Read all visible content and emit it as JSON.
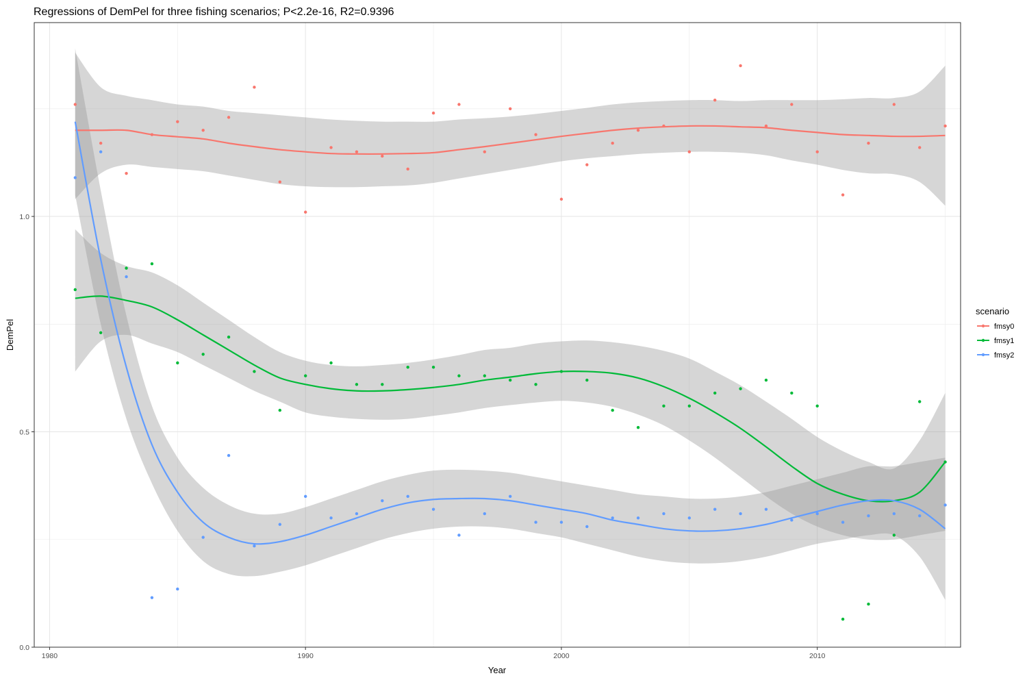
{
  "chart_data": {
    "type": "scatter",
    "title": "Regressions of DemPel for three fishing scenarios; P<2.2e-16, R2=0.9396",
    "xlabel": "Year",
    "ylabel": "DemPel",
    "xlim": [
      1979.4,
      2015.6
    ],
    "ylim": [
      0.0,
      1.45
    ],
    "x_ticks": [
      1980,
      1990,
      2000,
      2010
    ],
    "x_tick_labels": [
      "1980",
      "1990",
      "2000",
      "2010"
    ],
    "y_ticks": [
      0.0,
      0.5,
      1.0
    ],
    "y_tick_labels": [
      "0.0",
      "0.5",
      "1.0"
    ],
    "grid": true,
    "legend": {
      "title": "scenario",
      "position": "right"
    },
    "series": [
      {
        "name": "fmsy0",
        "color": "#F8766D",
        "points": {
          "x": [
            1981,
            1982,
            1983,
            1984,
            1985,
            1986,
            1987,
            1988,
            1989,
            1990,
            1991,
            1992,
            1993,
            1994,
            1995,
            1996,
            1997,
            1998,
            1999,
            2000,
            2001,
            2002,
            2003,
            2004,
            2005,
            2006,
            2007,
            2008,
            2009,
            2010,
            2011,
            2012,
            2013,
            2014,
            2015
          ],
          "y": [
            1.26,
            1.17,
            1.1,
            1.19,
            1.22,
            1.2,
            1.23,
            1.3,
            1.08,
            1.01,
            1.16,
            1.15,
            1.14,
            1.11,
            1.24,
            1.26,
            1.15,
            1.25,
            1.19,
            1.04,
            1.12,
            1.17,
            1.2,
            1.21,
            1.15,
            1.27,
            1.35,
            1.21,
            1.26,
            1.15,
            1.05,
            1.17,
            1.26,
            1.16,
            1.21
          ]
        },
        "smooth": {
          "x": [
            1981,
            1982,
            1983,
            1984,
            1985,
            1986,
            1987,
            1988,
            1989,
            1990,
            1991,
            1992,
            1993,
            1994,
            1995,
            1996,
            1997,
            1998,
            1999,
            2000,
            2001,
            2002,
            2003,
            2004,
            2005,
            2006,
            2007,
            2008,
            2009,
            2010,
            2011,
            2012,
            2013,
            2014,
            2015
          ],
          "y": [
            1.2,
            1.2,
            1.2,
            1.19,
            1.185,
            1.18,
            1.17,
            1.162,
            1.155,
            1.15,
            1.146,
            1.145,
            1.145,
            1.146,
            1.148,
            1.155,
            1.162,
            1.17,
            1.178,
            1.186,
            1.193,
            1.2,
            1.205,
            1.208,
            1.21,
            1.21,
            1.208,
            1.206,
            1.2,
            1.195,
            1.19,
            1.188,
            1.186,
            1.186,
            1.188
          ],
          "ci_lower": [
            1.04,
            1.1,
            1.12,
            1.115,
            1.11,
            1.105,
            1.095,
            1.085,
            1.075,
            1.07,
            1.068,
            1.068,
            1.07,
            1.072,
            1.078,
            1.088,
            1.098,
            1.108,
            1.118,
            1.128,
            1.135,
            1.14,
            1.145,
            1.148,
            1.15,
            1.15,
            1.148,
            1.142,
            1.13,
            1.12,
            1.108,
            1.1,
            1.098,
            1.08,
            1.025
          ],
          "ci_upper": [
            1.38,
            1.3,
            1.28,
            1.27,
            1.26,
            1.255,
            1.245,
            1.24,
            1.235,
            1.23,
            1.225,
            1.222,
            1.22,
            1.22,
            1.22,
            1.225,
            1.228,
            1.232,
            1.238,
            1.245,
            1.252,
            1.26,
            1.265,
            1.268,
            1.27,
            1.27,
            1.268,
            1.27,
            1.27,
            1.27,
            1.272,
            1.275,
            1.275,
            1.29,
            1.35
          ]
        }
      },
      {
        "name": "fmsy1",
        "color": "#00BA38",
        "points": {
          "x": [
            1981,
            1982,
            1983,
            1984,
            1985,
            1986,
            1987,
            1988,
            1989,
            1990,
            1991,
            1992,
            1993,
            1994,
            1995,
            1996,
            1997,
            1998,
            1999,
            2000,
            2001,
            2002,
            2003,
            2004,
            2005,
            2006,
            2007,
            2008,
            2009,
            2010,
            2011,
            2012,
            2013,
            2014,
            2015
          ],
          "y": [
            0.83,
            0.73,
            0.88,
            0.89,
            0.66,
            0.68,
            0.72,
            0.64,
            0.55,
            0.63,
            0.66,
            0.61,
            0.61,
            0.65,
            0.65,
            0.63,
            0.63,
            0.62,
            0.61,
            0.64,
            0.62,
            0.55,
            0.51,
            0.56,
            0.56,
            0.59,
            0.6,
            0.62,
            0.59,
            0.56,
            0.065,
            0.1,
            0.26,
            0.57,
            0.43
          ]
        },
        "smooth": {
          "x": [
            1981,
            1982,
            1983,
            1984,
            1985,
            1986,
            1987,
            1988,
            1989,
            1990,
            1991,
            1992,
            1993,
            1994,
            1995,
            1996,
            1997,
            1998,
            1999,
            2000,
            2001,
            2002,
            2003,
            2004,
            2005,
            2006,
            2007,
            2008,
            2009,
            2010,
            2011,
            2012,
            2013,
            2014,
            2015
          ],
          "y": [
            0.81,
            0.815,
            0.805,
            0.79,
            0.76,
            0.725,
            0.69,
            0.655,
            0.625,
            0.61,
            0.6,
            0.595,
            0.595,
            0.598,
            0.603,
            0.61,
            0.62,
            0.627,
            0.635,
            0.64,
            0.64,
            0.636,
            0.625,
            0.605,
            0.578,
            0.545,
            0.508,
            0.465,
            0.42,
            0.38,
            0.355,
            0.34,
            0.34,
            0.36,
            0.43
          ],
          "ci_lower": [
            0.64,
            0.71,
            0.725,
            0.705,
            0.685,
            0.655,
            0.625,
            0.595,
            0.57,
            0.545,
            0.535,
            0.53,
            0.528,
            0.53,
            0.537,
            0.545,
            0.555,
            0.562,
            0.568,
            0.572,
            0.568,
            0.558,
            0.54,
            0.515,
            0.48,
            0.44,
            0.395,
            0.35,
            0.31,
            0.28,
            0.26,
            0.25,
            0.25,
            0.26,
            0.27
          ],
          "ci_upper": [
            0.97,
            0.915,
            0.885,
            0.87,
            0.84,
            0.8,
            0.76,
            0.72,
            0.685,
            0.665,
            0.655,
            0.652,
            0.655,
            0.66,
            0.668,
            0.678,
            0.69,
            0.695,
            0.705,
            0.71,
            0.712,
            0.708,
            0.7,
            0.688,
            0.67,
            0.64,
            0.608,
            0.57,
            0.53,
            0.488,
            0.455,
            0.43,
            0.415,
            0.48,
            0.59
          ]
        }
      },
      {
        "name": "fmsy2",
        "color": "#619CFF",
        "points": {
          "x": [
            1981,
            1982,
            1983,
            1984,
            1985,
            1986,
            1987,
            1988,
            1989,
            1990,
            1991,
            1992,
            1993,
            1994,
            1995,
            1996,
            1997,
            1998,
            1999,
            2000,
            2001,
            2002,
            2003,
            2004,
            2005,
            2006,
            2007,
            2008,
            2009,
            2010,
            2011,
            2012,
            2013,
            2014,
            2015
          ],
          "y": [
            1.09,
            1.15,
            0.86,
            0.115,
            0.135,
            0.255,
            0.445,
            0.235,
            0.285,
            0.35,
            0.3,
            0.31,
            0.34,
            0.35,
            0.32,
            0.26,
            0.31,
            0.35,
            0.29,
            0.29,
            0.28,
            0.3,
            0.3,
            0.31,
            0.3,
            0.32,
            0.31,
            0.32,
            0.295,
            0.31,
            0.29,
            0.305,
            0.31,
            0.305,
            0.33
          ]
        },
        "smooth": {
          "x": [
            1981,
            1982,
            1983,
            1984,
            1985,
            1986,
            1987,
            1988,
            1989,
            1990,
            1991,
            1992,
            1993,
            1994,
            1995,
            1996,
            1997,
            1998,
            1999,
            2000,
            2001,
            2002,
            2003,
            2004,
            2005,
            2006,
            2007,
            2008,
            2009,
            2010,
            2011,
            2012,
            2013,
            2014,
            2015
          ],
          "y": [
            1.22,
            0.9,
            0.65,
            0.47,
            0.36,
            0.29,
            0.255,
            0.24,
            0.245,
            0.26,
            0.28,
            0.3,
            0.32,
            0.335,
            0.343,
            0.345,
            0.345,
            0.34,
            0.33,
            0.32,
            0.31,
            0.295,
            0.285,
            0.275,
            0.27,
            0.27,
            0.275,
            0.285,
            0.3,
            0.315,
            0.33,
            0.34,
            0.34,
            0.32,
            0.275
          ],
          "ci_lower": [
            1.05,
            0.75,
            0.53,
            0.38,
            0.27,
            0.2,
            0.17,
            0.165,
            0.175,
            0.19,
            0.21,
            0.23,
            0.25,
            0.265,
            0.275,
            0.28,
            0.28,
            0.275,
            0.265,
            0.255,
            0.24,
            0.225,
            0.21,
            0.2,
            0.195,
            0.195,
            0.2,
            0.21,
            0.225,
            0.24,
            0.25,
            0.26,
            0.26,
            0.21,
            0.11
          ],
          "ci_upper": [
            1.39,
            1.06,
            0.77,
            0.56,
            0.44,
            0.37,
            0.33,
            0.31,
            0.31,
            0.325,
            0.345,
            0.365,
            0.385,
            0.4,
            0.41,
            0.412,
            0.41,
            0.405,
            0.395,
            0.385,
            0.375,
            0.365,
            0.355,
            0.35,
            0.345,
            0.345,
            0.35,
            0.36,
            0.375,
            0.39,
            0.405,
            0.42,
            0.42,
            0.43,
            0.44
          ]
        }
      }
    ]
  }
}
